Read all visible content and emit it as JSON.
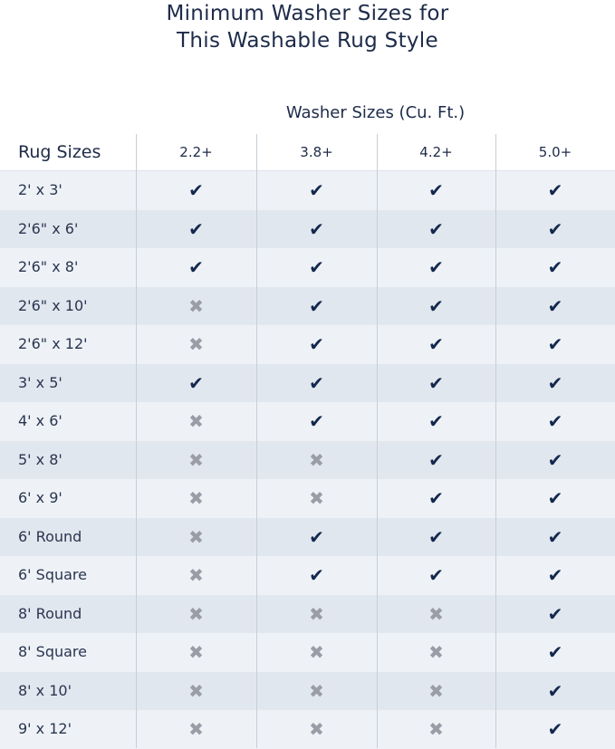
{
  "title": [
    "Minimum Washer Sizes for",
    "This Washable Rug Style"
  ],
  "washer_header": "Washer Sizes (Cu. Ft.)",
  "rug_header": "Rug Sizes",
  "columns": [
    "2.2+",
    "3.8+",
    "4.2+",
    "5.0+"
  ],
  "icons": {
    "yes": "check-icon",
    "no": "x-icon"
  },
  "colors": {
    "check": "#13284d",
    "x": "#9a9da6"
  },
  "rows": [
    {
      "size": "2' x 3'",
      "fits": [
        true,
        true,
        true,
        true
      ]
    },
    {
      "size": "2'6\" x 6'",
      "fits": [
        true,
        true,
        true,
        true
      ]
    },
    {
      "size": "2'6\" x 8'",
      "fits": [
        true,
        true,
        true,
        true
      ]
    },
    {
      "size": "2'6\" x 10'",
      "fits": [
        false,
        true,
        true,
        true
      ]
    },
    {
      "size": "2'6\" x 12'",
      "fits": [
        false,
        true,
        true,
        true
      ]
    },
    {
      "size": "3' x 5'",
      "fits": [
        true,
        true,
        true,
        true
      ]
    },
    {
      "size": "4' x 6'",
      "fits": [
        false,
        true,
        true,
        true
      ]
    },
    {
      "size": "5' x 8'",
      "fits": [
        false,
        false,
        true,
        true
      ]
    },
    {
      "size": "6' x 9'",
      "fits": [
        false,
        false,
        true,
        true
      ]
    },
    {
      "size": "6' Round",
      "fits": [
        false,
        true,
        true,
        true
      ]
    },
    {
      "size": "6' Square",
      "fits": [
        false,
        true,
        true,
        true
      ]
    },
    {
      "size": "8' Round",
      "fits": [
        false,
        false,
        false,
        true
      ]
    },
    {
      "size": "8' Square",
      "fits": [
        false,
        false,
        false,
        true
      ]
    },
    {
      "size": "8' x 10'",
      "fits": [
        false,
        false,
        false,
        true
      ]
    },
    {
      "size": "9' x 12'",
      "fits": [
        false,
        false,
        false,
        true
      ]
    }
  ]
}
